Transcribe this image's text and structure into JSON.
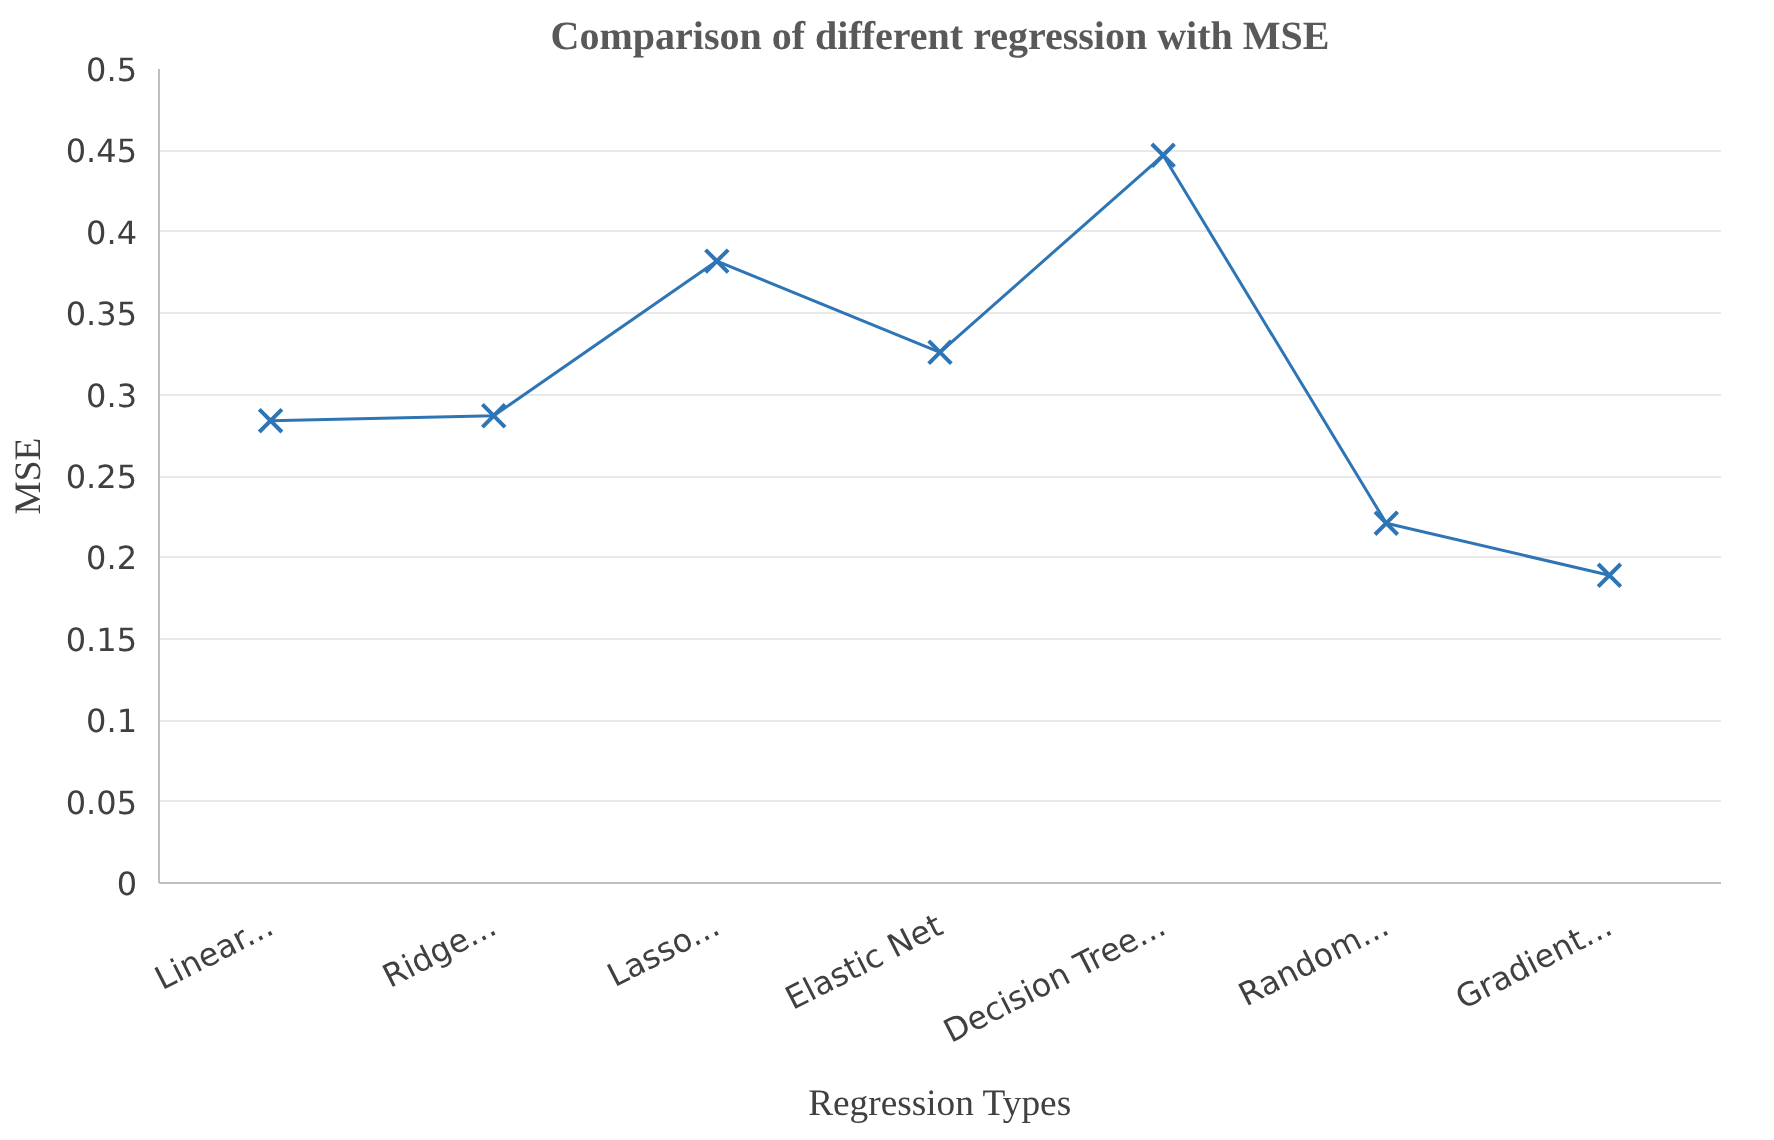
{
  "chart_data": {
    "type": "line",
    "title": "Comparison of different regression with MSE",
    "xlabel": "Regression Types",
    "ylabel": "MSE",
    "categories": [
      "Linear...",
      "Ridge...",
      "Lasso...",
      "Elastic Net",
      "Decision Tree...",
      "Random...",
      "Gradient..."
    ],
    "series": [
      {
        "color": "#2e75b6",
        "values": [
          0.284,
          0.287,
          0.382,
          0.326,
          0.447,
          0.221,
          0.189
        ]
      }
    ],
    "ylim": [
      0,
      0.5
    ],
    "yticks": [
      0,
      0.05,
      0.1,
      0.15,
      0.2,
      0.25,
      0.3,
      0.35,
      0.4,
      0.45,
      0.5
    ],
    "grid": "y",
    "marker": "cross",
    "line_style": "solid"
  }
}
